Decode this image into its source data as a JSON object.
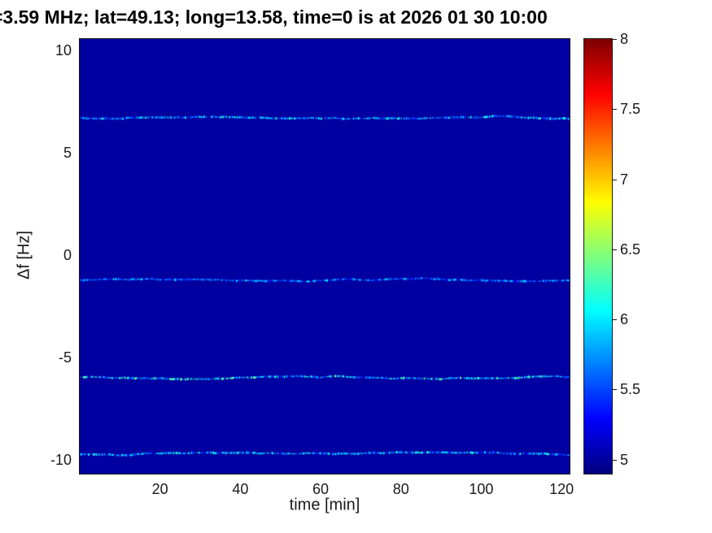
{
  "chart_data": {
    "type": "heatmap",
    "title": "=3.59 MHz;  lat=49.13; long=13.58, time=0 is at 2026 01 30 10:00",
    "xlabel": "time [min]",
    "ylabel": "Δf [Hz]",
    "xlim": [
      0,
      122
    ],
    "ylim": [
      -10.67,
      10.56
    ],
    "x_ticks": [
      20,
      40,
      60,
      80,
      100,
      120
    ],
    "y_ticks": [
      10,
      5,
      0,
      -5,
      -10
    ],
    "grid": false,
    "colorbar": {
      "colormap": "jet",
      "range": [
        4.9,
        8.0
      ],
      "ticks": [
        5,
        5.5,
        6,
        6.5,
        7,
        7.5,
        8
      ],
      "position": "right"
    },
    "background_value": 5.0,
    "spectral_lines": [
      {
        "delta_f": 6.7,
        "intensity_min": 5.35,
        "intensity_max": 6.2
      },
      {
        "delta_f": -1.2,
        "intensity_min": 5.3,
        "intensity_max": 6.0
      },
      {
        "delta_f": -6.0,
        "intensity_min": 5.4,
        "intensity_max": 6.4
      },
      {
        "delta_f": -9.7,
        "intensity_min": 5.3,
        "intensity_max": 6.15
      }
    ]
  }
}
